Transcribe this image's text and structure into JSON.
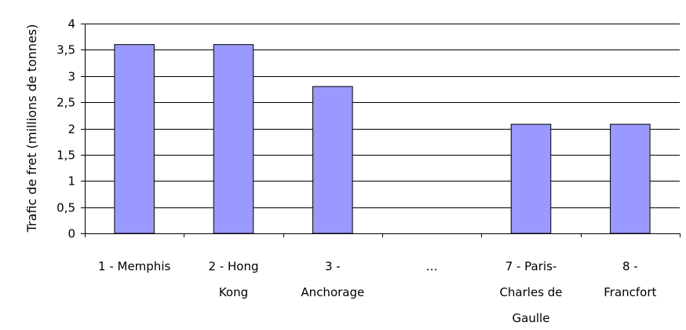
{
  "chart_data": {
    "type": "bar",
    "categories": [
      [
        "1 - Memphis"
      ],
      [
        "2 - Hong",
        "Kong"
      ],
      [
        "3 -",
        "Anchorage"
      ],
      [
        "…"
      ],
      [
        "7 - Paris-",
        "Charles de",
        "Gaulle"
      ],
      [
        "8 -",
        "Francfort"
      ]
    ],
    "values": [
      3.6,
      3.6,
      2.8,
      null,
      2.08,
      2.08
    ],
    "ylabel": "Trafic de fret (millions de tonnes)",
    "ylim": [
      0,
      4
    ],
    "yticks": [
      0,
      0.5,
      1,
      1.5,
      2,
      2.5,
      3,
      3.5,
      4
    ],
    "ytick_labels": [
      "0",
      "0,5",
      "1",
      "1,5",
      "2",
      "2,5",
      "3",
      "3,5",
      "4"
    ],
    "grid": true,
    "colors": {
      "bar_fill": "#9999ff",
      "bar_stroke": "#000000",
      "grid": "#000000",
      "axis": "#000000"
    }
  }
}
